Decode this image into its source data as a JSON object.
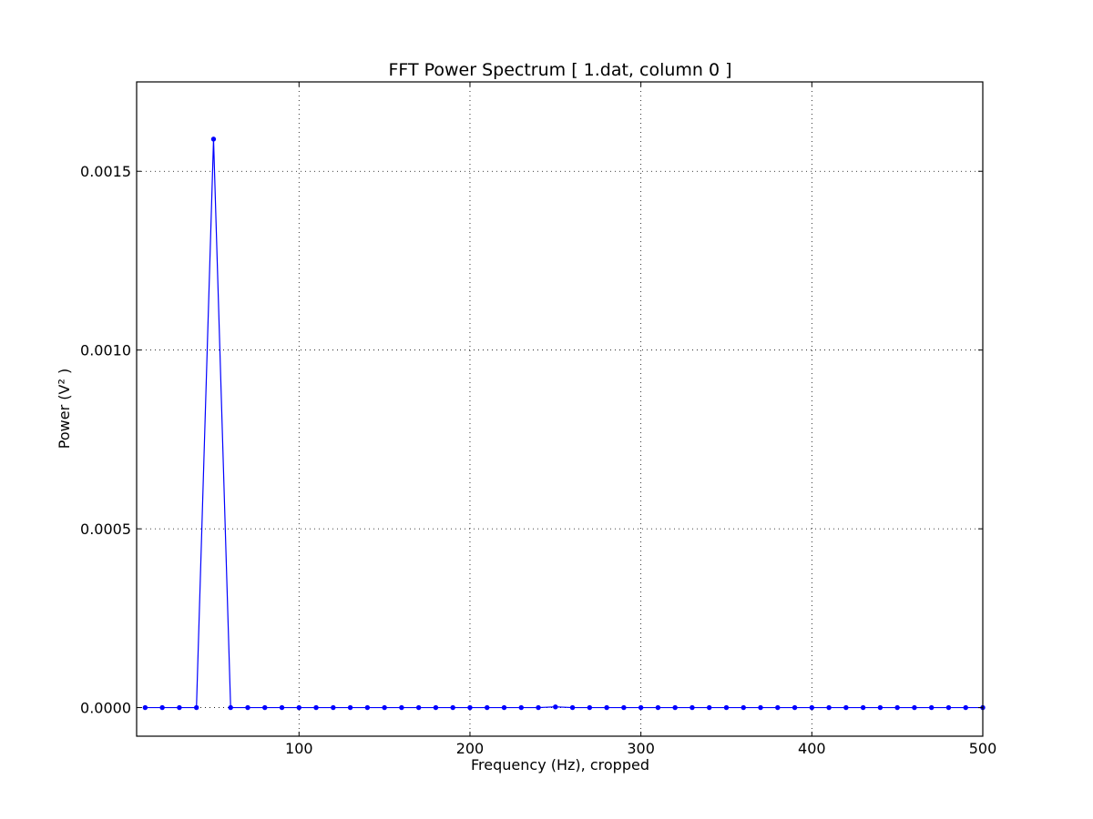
{
  "chart_data": {
    "type": "line",
    "title": "FFT Power Spectrum  [ 1.dat, column 0 ]",
    "xlabel": "Frequency (Hz),  cropped",
    "ylabel": "Power (V² )",
    "xlim": [
      5,
      500
    ],
    "ylim": [
      -8e-05,
      0.00175
    ],
    "x_ticks": [
      100,
      200,
      300,
      400,
      500
    ],
    "x_tick_labels": [
      "100",
      "200",
      "300",
      "400",
      "500"
    ],
    "y_ticks": [
      0.0,
      0.0005,
      0.001,
      0.0015
    ],
    "y_tick_labels": [
      "0.0000",
      "0.0005",
      "0.0010",
      "0.0015"
    ],
    "grid": true,
    "series": [
      {
        "color": "#0000ff",
        "marker": "dot",
        "x": [
          10,
          20,
          30,
          40,
          50,
          60,
          70,
          80,
          90,
          100,
          110,
          120,
          130,
          140,
          150,
          160,
          170,
          180,
          190,
          200,
          210,
          220,
          230,
          240,
          250,
          260,
          270,
          280,
          290,
          300,
          310,
          320,
          330,
          340,
          350,
          360,
          370,
          380,
          390,
          400,
          410,
          420,
          430,
          440,
          450,
          460,
          470,
          480,
          490,
          500
        ],
        "y": [
          0,
          0,
          0,
          0,
          0.00159,
          0,
          0,
          0,
          0,
          0,
          0,
          0,
          0,
          0,
          0,
          0,
          0,
          0,
          0,
          0,
          0,
          0,
          0,
          0,
          2e-06,
          0,
          0,
          0,
          0,
          0,
          0,
          0,
          0,
          0,
          0,
          0,
          0,
          0,
          0,
          0,
          0,
          0,
          0,
          0,
          0,
          0,
          0,
          0,
          0,
          0
        ]
      }
    ]
  }
}
